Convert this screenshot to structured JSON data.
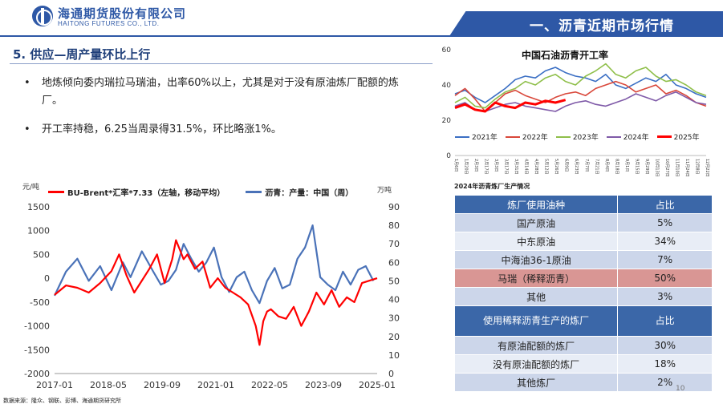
{
  "header": {
    "company_cn": "海通期货股份有限公司",
    "company_en": "HAITONG FUTURES CO., LTD.",
    "section_title": "一、沥青近期市场行情",
    "brand_color": "#2e58a6"
  },
  "slide": {
    "heading": "5. 供应—周产量环比上行",
    "bullets": [
      "地炼倾向委内瑞拉马瑞油，出率60%以上，尤其是对于没有原油炼厂配额的炼厂。",
      "开工率持稳，6.25当周录得31.5%，环比略涨1%。"
    ],
    "bullet_symbol": "•"
  },
  "left_chart_text": {
    "unit_left": "元/吨",
    "unit_right": "万吨"
  },
  "right_chart_text": {
    "title": "中国石油沥青开工率"
  },
  "table": {
    "caption": "2024年沥青炼厂生产情况",
    "header1": [
      "炼厂使用油种",
      "占比"
    ],
    "rows1": [
      [
        "国产原油",
        "5%"
      ],
      [
        "中东原油",
        "34%"
      ],
      [
        "中海油36-1原油",
        "7%"
      ],
      [
        "马瑞（稀释沥青）",
        "50%"
      ],
      [
        "其他",
        "3%"
      ]
    ],
    "header2": [
      "使用稀释沥青生产的炼厂",
      "占比"
    ],
    "rows2": [
      [
        "有原油配额的炼厂",
        "30%"
      ],
      [
        "没有原油配额的炼厂",
        "18%"
      ],
      [
        "其他炼厂",
        "2%"
      ]
    ]
  },
  "footer": {
    "page_number": "10",
    "source": "数据来源：隆众、钢联、彭博、海通期货研究所"
  },
  "chart_data": [
    {
      "type": "line",
      "title": "",
      "xlabel": "",
      "ylabel_left": "元/吨",
      "ylabel_right": "万吨",
      "x_ticks": [
        "2017-01",
        "2018-05",
        "2019-09",
        "2021-01",
        "2022-05",
        "2023-09",
        "2025-01"
      ],
      "y_left_ticks": [
        1500,
        1000,
        500,
        0,
        -500,
        -1000,
        -1500,
        -2000
      ],
      "y_right_ticks": [
        90,
        80,
        70,
        60,
        50,
        40,
        30,
        20,
        10,
        0
      ],
      "ylim_left": [
        -2000,
        1500
      ],
      "ylim_right": [
        0,
        90
      ],
      "x_range": [
        2017.0,
        2025.5
      ],
      "legend_position": "top",
      "grid": false,
      "series": [
        {
          "name": "BU-Brent*汇率*7.33（左轴，移动平均）",
          "axis": "left",
          "color": "#ff0000",
          "x": [
            2017.0,
            2017.3,
            2017.6,
            2017.9,
            2018.2,
            2018.5,
            2018.7,
            2018.9,
            2019.1,
            2019.3,
            2019.5,
            2019.7,
            2019.9,
            2020.1,
            2020.2,
            2020.3,
            2020.4,
            2020.5,
            2020.7,
            2020.9,
            2021.1,
            2021.3,
            2021.5,
            2021.7,
            2021.9,
            2022.1,
            2022.3,
            2022.4,
            2022.5,
            2022.6,
            2022.7,
            2022.9,
            2023.1,
            2023.3,
            2023.5,
            2023.7,
            2023.9,
            2024.1,
            2024.3,
            2024.5,
            2024.7,
            2024.9,
            2025.1,
            2025.3,
            2025.5
          ],
          "y": [
            -350,
            -150,
            -200,
            -300,
            -100,
            150,
            500,
            50,
            -300,
            -50,
            200,
            500,
            -100,
            400,
            800,
            600,
            400,
            500,
            200,
            350,
            -200,
            0,
            -200,
            -300,
            -400,
            -550,
            -1000,
            -1400,
            -900,
            -700,
            -650,
            -800,
            -850,
            -600,
            -1000,
            -700,
            -300,
            -550,
            -250,
            -600,
            -400,
            -500,
            -100,
            -50,
            0
          ]
        },
        {
          "name": "沥青：产量：中国（周）",
          "axis": "right",
          "color": "#4a72b8",
          "x": [
            2017.0,
            2017.3,
            2017.6,
            2017.9,
            2018.2,
            2018.5,
            2018.8,
            2019.0,
            2019.3,
            2019.6,
            2019.8,
            2020.0,
            2020.2,
            2020.4,
            2020.6,
            2020.8,
            2021.0,
            2021.2,
            2021.4,
            2021.6,
            2021.8,
            2022.0,
            2022.2,
            2022.4,
            2022.6,
            2022.8,
            2023.0,
            2023.2,
            2023.4,
            2023.6,
            2023.8,
            2024.0,
            2024.2,
            2024.4,
            2024.6,
            2024.8,
            2025.0,
            2025.2,
            2025.4
          ],
          "y": [
            42,
            55,
            62,
            50,
            58,
            45,
            60,
            52,
            66,
            55,
            48,
            50,
            56,
            70,
            62,
            55,
            60,
            68,
            52,
            44,
            52,
            55,
            45,
            38,
            50,
            57,
            46,
            48,
            62,
            68,
            80,
            52,
            48,
            45,
            55,
            48,
            56,
            58,
            50
          ]
        }
      ]
    },
    {
      "type": "line",
      "title": "中国石油沥青开工率",
      "x_labels": [
        "1月6日",
        "1月20日",
        "2月3日",
        "2月17日",
        "3月3日",
        "3月17日",
        "3月31日",
        "4月14日",
        "4月28日",
        "5月12日",
        "5月26日",
        "6月9日",
        "6月23日",
        "7月7日",
        "7月21日",
        "8月4日",
        "8月18日",
        "9月1日",
        "9月15日",
        "9月29日",
        "10月13日",
        "10月27日",
        "11月10日",
        "11月24日",
        "12月8日",
        "12月22日"
      ],
      "y_ticks": [
        60,
        40,
        20,
        0
      ],
      "ylim": [
        0,
        60
      ],
      "legend_position": "bottom",
      "grid": false,
      "series": [
        {
          "name": "2021年",
          "color": "#3b6fc4",
          "values": [
            35,
            37,
            33,
            30,
            34,
            38,
            43,
            45,
            44,
            48,
            50,
            47,
            45,
            44,
            42,
            46,
            40,
            38,
            41,
            44,
            42,
            46,
            40,
            38,
            35,
            33
          ]
        },
        {
          "name": "2022年",
          "color": "#d9473a",
          "values": [
            34,
            38,
            32,
            25,
            30,
            35,
            37,
            34,
            32,
            30,
            33,
            35,
            36,
            34,
            38,
            40,
            42,
            40,
            36,
            38,
            40,
            35,
            37,
            34,
            30,
            28
          ]
        },
        {
          "name": "2023年",
          "color": "#8fbf4a",
          "values": [
            30,
            33,
            28,
            27,
            32,
            36,
            38,
            42,
            40,
            44,
            46,
            42,
            40,
            45,
            48,
            52,
            46,
            44,
            48,
            50,
            45,
            42,
            43,
            40,
            36,
            34
          ]
        },
        {
          "name": "2024年",
          "color": "#7f5aa8",
          "values": [
            28,
            30,
            26,
            25,
            27,
            29,
            30,
            28,
            27,
            26,
            25,
            28,
            30,
            31,
            29,
            28,
            30,
            32,
            35,
            33,
            31,
            34,
            36,
            33,
            30,
            29
          ]
        },
        {
          "name": "2025年",
          "color": "#ff0000",
          "values": [
            27,
            29,
            26,
            25,
            30,
            28,
            27,
            30,
            29,
            31,
            30,
            31.5
          ]
        }
      ]
    }
  ]
}
